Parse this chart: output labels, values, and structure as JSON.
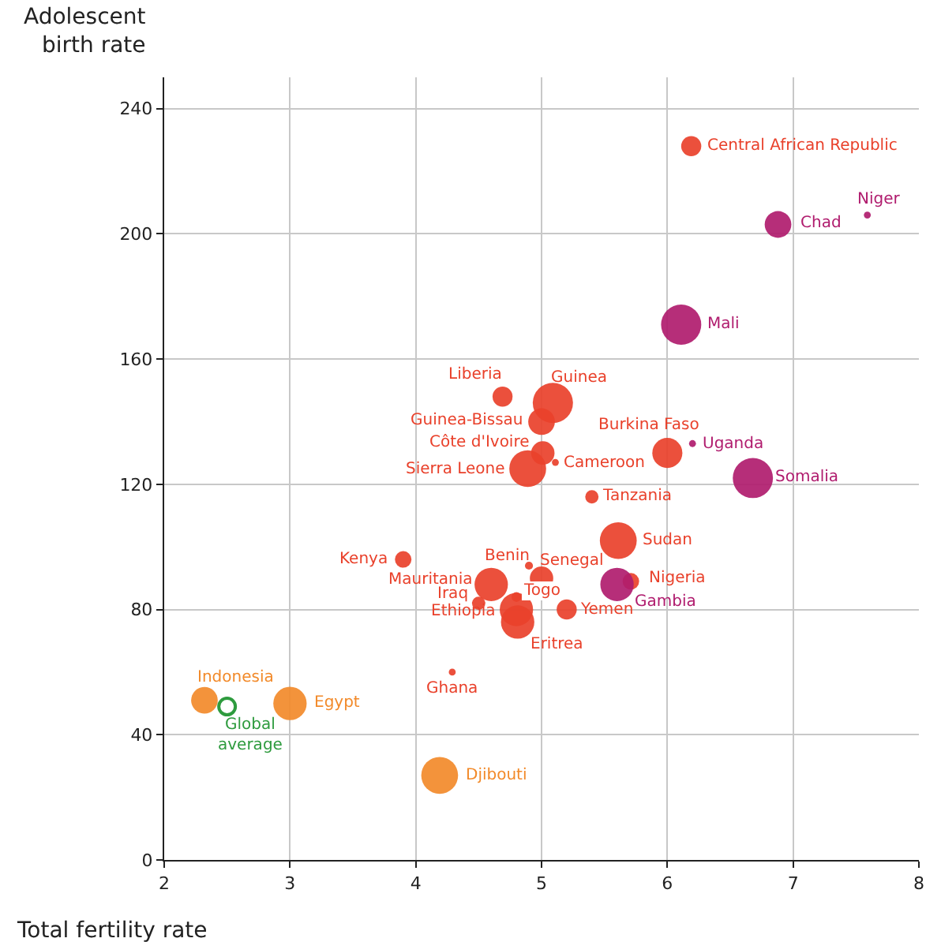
{
  "chart_data": {
    "type": "bubble",
    "xlabel": "Total fertility rate",
    "ylabel": "Adolescent\nbirth rate",
    "xlim": [
      2,
      8
    ],
    "xticks": [
      2,
      3,
      4,
      5,
      6,
      7,
      8
    ],
    "ylim": [
      0,
      250
    ],
    "yticks": [
      0,
      40,
      80,
      120,
      160,
      200,
      240
    ],
    "grid": true,
    "series": [
      {
        "color": "#e9412b",
        "x": [
          6.19,
          4.69,
          5.09,
          5.0,
          5.01,
          4.89,
          5.11,
          6.0,
          5.4,
          5.61,
          3.9,
          4.9,
          5.0,
          4.6,
          5.71,
          4.5,
          4.8,
          4.8,
          4.81,
          5.2,
          4.29
        ],
        "values": [
          228,
          148,
          146,
          140,
          130,
          125,
          127,
          130,
          116,
          102,
          96,
          94,
          90,
          88,
          89,
          82,
          84,
          80,
          76,
          80,
          60
        ],
        "sizes": [
          0.25,
          0.25,
          1.0,
          0.44,
          0.34,
          0.84,
          0.03,
          0.56,
          0.11,
          0.84,
          0.17,
          0.04,
          0.34,
          0.69,
          0.17,
          0.11,
          0.06,
          0.69,
          0.69,
          0.25,
          0.03
        ],
        "value_labels": [
          "Central African Republic",
          "Liberia",
          "Guinea",
          "Guinea-Bissau",
          "Côte d'Ivoire",
          "Sierra Leone",
          "Cameroon",
          "Burkina Faso",
          "Tanzania",
          "Sudan",
          "Kenya",
          "Benin",
          "Senegal",
          "Mauritania",
          "Nigeria",
          "Iraq",
          "Togo",
          "Ethiopia",
          "Eritrea",
          "Yemen",
          "Ghana"
        ]
      },
      {
        "color": "#b01c6e",
        "x": [
          6.88,
          7.59,
          6.11,
          6.2,
          6.68,
          5.6
        ],
        "values": [
          203,
          206,
          171,
          133,
          122,
          88
        ],
        "sizes": [
          0.44,
          0.03,
          1.0,
          0.03,
          1.0,
          0.69
        ],
        "value_labels": [
          "Chad",
          "Niger",
          "Mali",
          "Uganda",
          "Somalia",
          "Gambia"
        ]
      },
      {
        "color": "#f28a2a",
        "x": [
          2.32,
          3.0,
          4.19
        ],
        "values": [
          51,
          50,
          27
        ],
        "sizes": [
          0.44,
          0.69,
          0.84
        ],
        "value_labels": [
          "Indonesia",
          "Egypt",
          "Djibouti"
        ]
      },
      {
        "color": "#2e9b3e",
        "x": [
          2.5
        ],
        "values": [
          49
        ],
        "sizes": [
          0.17
        ],
        "marker": "circle-open",
        "value_labels": [
          "Global\naverage"
        ]
      }
    ]
  }
}
